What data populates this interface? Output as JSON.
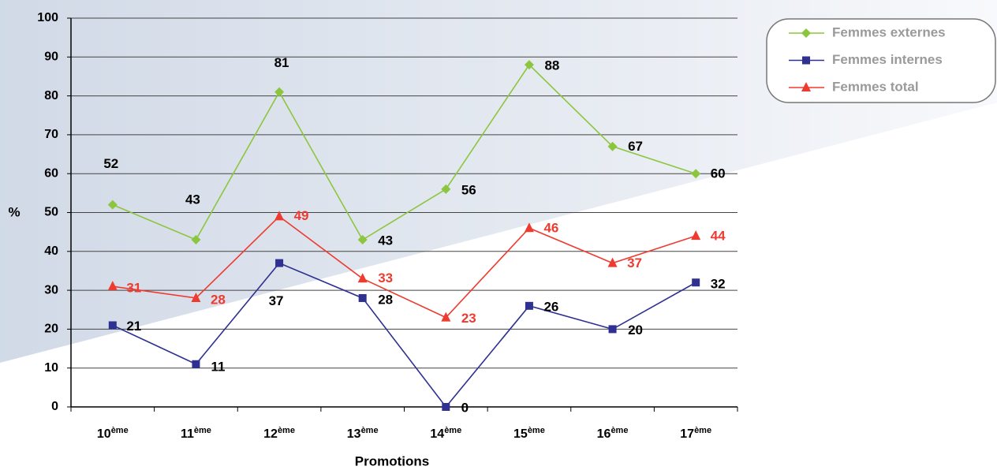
{
  "chart_data": {
    "type": "line",
    "categories": [
      "10ème",
      "11ème",
      "12ème",
      "13ème",
      "14ème",
      "15ème",
      "16ème",
      "17ème"
    ],
    "series": [
      {
        "name": "Femmes externes",
        "color": "#8cc63e",
        "marker": "diamond",
        "label_color": "#000000",
        "values": [
          52,
          43,
          81,
          43,
          56,
          88,
          67,
          60
        ]
      },
      {
        "name": "Femmes internes",
        "color": "#2e3192",
        "marker": "square",
        "label_color": "#000000",
        "values": [
          21,
          11,
          37,
          28,
          0,
          26,
          20,
          32
        ]
      },
      {
        "name": "Femmes total",
        "color": "#ee3b2f",
        "marker": "triangle",
        "label_color": "#ee3b2f",
        "values": [
          31,
          28,
          49,
          33,
          23,
          46,
          37,
          44
        ]
      }
    ],
    "ylabel": "%",
    "xlabel": "Promotions",
    "ylim": [
      0,
      100
    ],
    "yticks": [
      0,
      10,
      20,
      30,
      40,
      50,
      60,
      70,
      80,
      90,
      100
    ],
    "grid": true,
    "legend": "top-right"
  }
}
